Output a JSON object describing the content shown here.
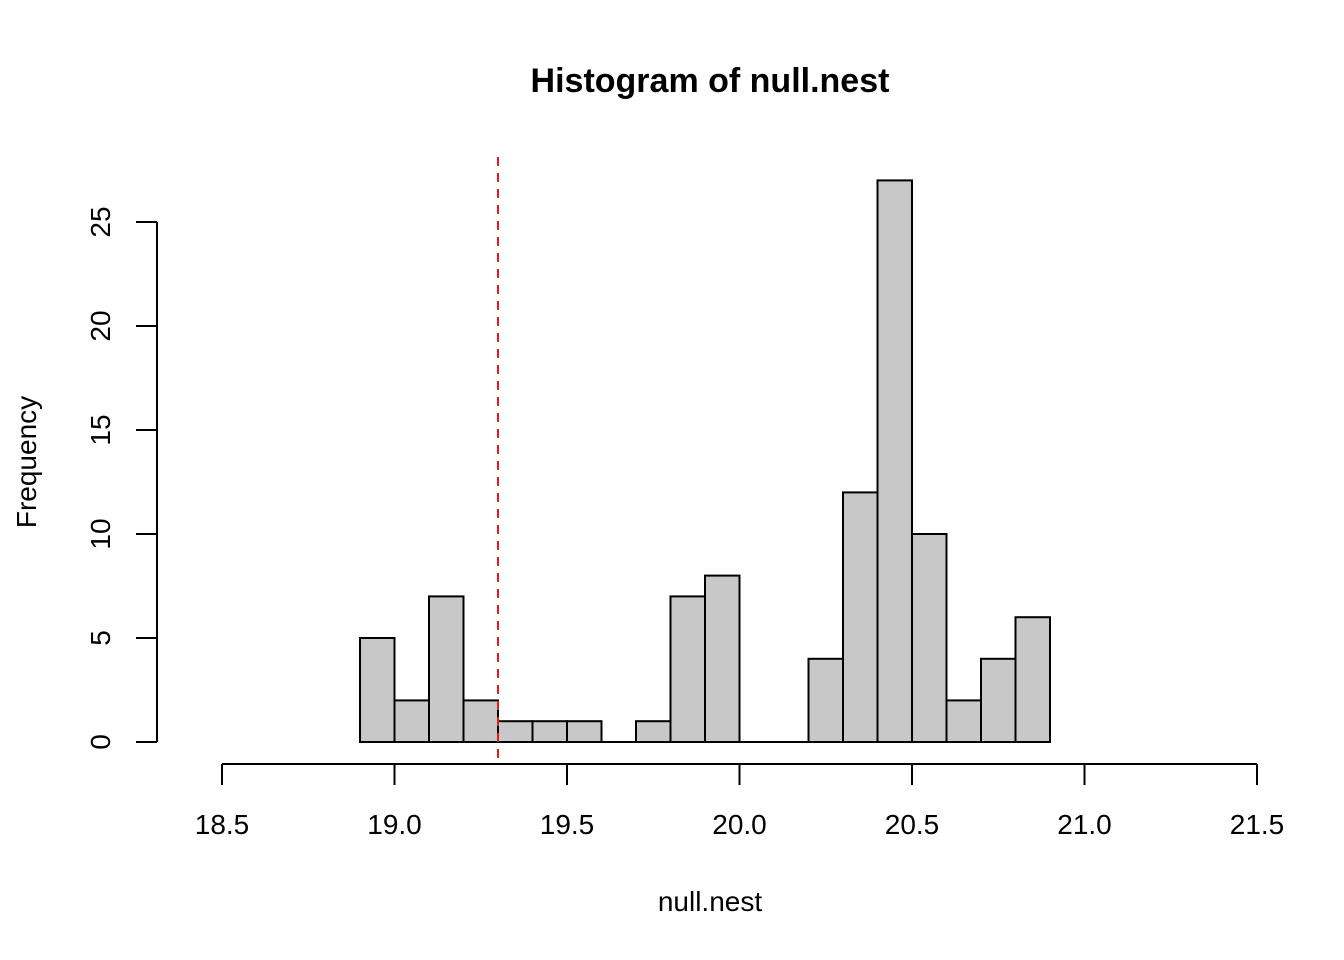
{
  "chart_data": {
    "type": "bar",
    "title": "Histogram of null.nest",
    "xlabel": "null.nest",
    "ylabel": "Frequency",
    "bin_width": 0.1,
    "bins": [
      {
        "start": 18.9,
        "end": 19.0,
        "count": 5
      },
      {
        "start": 19.0,
        "end": 19.1,
        "count": 2
      },
      {
        "start": 19.1,
        "end": 19.2,
        "count": 7
      },
      {
        "start": 19.2,
        "end": 19.3,
        "count": 2
      },
      {
        "start": 19.3,
        "end": 19.4,
        "count": 1
      },
      {
        "start": 19.4,
        "end": 19.5,
        "count": 1
      },
      {
        "start": 19.5,
        "end": 19.6,
        "count": 1
      },
      {
        "start": 19.6,
        "end": 19.7,
        "count": 0
      },
      {
        "start": 19.7,
        "end": 19.8,
        "count": 1
      },
      {
        "start": 19.8,
        "end": 19.9,
        "count": 7
      },
      {
        "start": 19.9,
        "end": 20.0,
        "count": 8
      },
      {
        "start": 20.0,
        "end": 20.1,
        "count": 0
      },
      {
        "start": 20.1,
        "end": 20.2,
        "count": 0
      },
      {
        "start": 20.2,
        "end": 20.3,
        "count": 4
      },
      {
        "start": 20.3,
        "end": 20.4,
        "count": 12
      },
      {
        "start": 20.4,
        "end": 20.5,
        "count": 27
      },
      {
        "start": 20.5,
        "end": 20.6,
        "count": 10
      },
      {
        "start": 20.6,
        "end": 20.7,
        "count": 2
      },
      {
        "start": 20.7,
        "end": 20.8,
        "count": 4
      },
      {
        "start": 20.8,
        "end": 20.9,
        "count": 6
      }
    ],
    "xlim": [
      18.5,
      21.5
    ],
    "ylim": [
      0,
      25
    ],
    "x_ticks": [
      "18.5",
      "19.0",
      "19.5",
      "20.0",
      "20.5",
      "21.0",
      "21.5"
    ],
    "y_ticks": [
      "0",
      "5",
      "10",
      "15",
      "20",
      "25"
    ],
    "reference_line": {
      "x": 19.3,
      "style": "dashed",
      "color": "#e31a1c"
    },
    "bar_fill": "#c8c8c8",
    "bar_stroke": "#000000",
    "grid": false,
    "legend": "none"
  }
}
